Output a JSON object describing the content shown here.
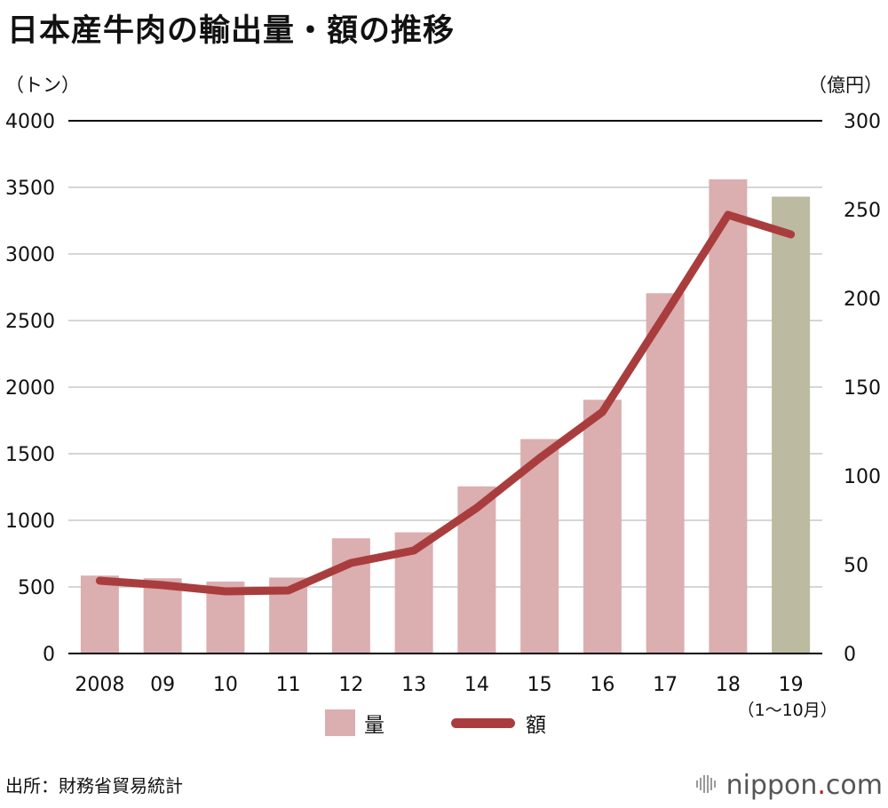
{
  "title": "日本産牛肉の輸出量・額の推移",
  "source": "出所：財務省貿易統計",
  "brand": {
    "name": "nippon",
    "dot": ".",
    "tld": "com",
    "icon": "nippon-logo-icon"
  },
  "legend": {
    "bar_label": "量",
    "line_label": "額"
  },
  "colors": {
    "bar": "#dbaeb0",
    "bar_highlight": "#bcbaa1",
    "line": "#a93d3e",
    "grid": "#c8c8c8",
    "axis": "#000000"
  },
  "chart_data": {
    "type": "bar+line",
    "title": "日本産牛肉の輸出量・額の推移",
    "categories": [
      "2008",
      "09",
      "10",
      "11",
      "12",
      "13",
      "14",
      "15",
      "16",
      "17",
      "18",
      "19"
    ],
    "category_note": "（1〜10月）",
    "y_left": {
      "label": "（トン）",
      "min": 0,
      "max": 4000,
      "ticks": [
        0,
        500,
        1000,
        1500,
        2000,
        2500,
        3000,
        3500,
        4000
      ]
    },
    "y_right": {
      "label": "（億円）",
      "min": 0,
      "max": 300,
      "ticks": [
        0,
        50,
        100,
        150,
        200,
        250,
        300
      ]
    },
    "series": [
      {
        "name": "量",
        "kind": "bar",
        "axis": "left",
        "values": [
          585,
          565,
          540,
          570,
          865,
          910,
          1255,
          1610,
          1905,
          2705,
          3560,
          3430
        ],
        "highlight_index": 11
      },
      {
        "name": "額",
        "kind": "line",
        "axis": "right",
        "values": [
          41,
          38.5,
          35,
          35.5,
          51,
          58,
          82,
          110,
          136,
          191,
          247,
          236
        ]
      }
    ],
    "grid": true,
    "legend_position": "bottom"
  }
}
